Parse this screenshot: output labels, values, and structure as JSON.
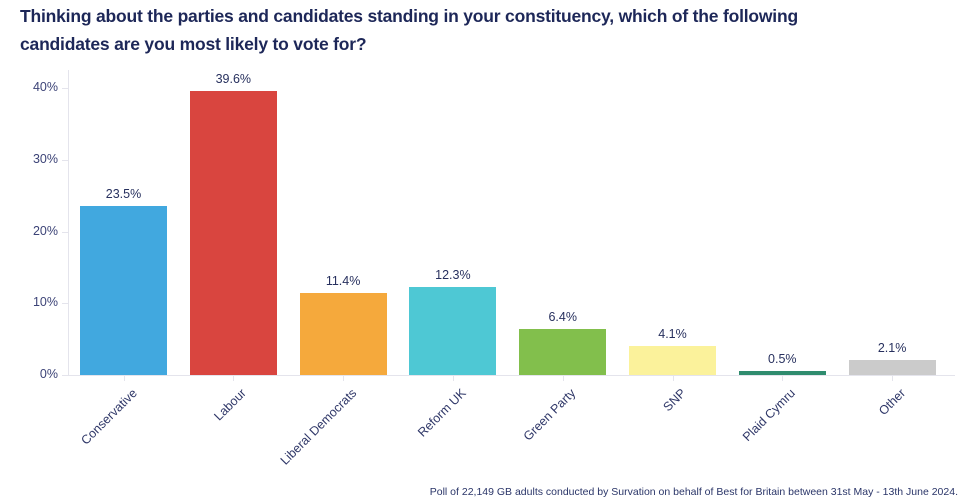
{
  "title_lines": [
    "Thinking about the parties and candidates standing in your constituency, which of the following",
    "candidates are you most likely to vote for?"
  ],
  "footer": "Poll of 22,149 GB adults conducted by Survation on behalf of Best for Britain between 31st May - 13th June 2024.",
  "chart_data": {
    "type": "bar",
    "title": "Thinking about the parties and candidates standing in your constituency, which of the following candidates are you most likely to vote for?",
    "categories": [
      "Conservative",
      "Labour",
      "Liberal Democrats",
      "Reform UK",
      "Green Party",
      "SNP",
      "Plaid Cymru",
      "Other"
    ],
    "values": [
      23.5,
      39.6,
      11.4,
      12.3,
      6.4,
      4.1,
      0.5,
      2.1
    ],
    "value_labels": [
      "23.5%",
      "39.6%",
      "11.4%",
      "12.3%",
      "6.4%",
      "4.1%",
      "0.5%",
      "2.1%"
    ],
    "bar_colors": [
      "#41a8df",
      "#d9453f",
      "#f5a93c",
      "#4ec8d4",
      "#82bf4c",
      "#fbf29b",
      "#2f8c6e",
      "#cbcbcb"
    ],
    "ytick_labels": [
      "0%",
      "10%",
      "20%",
      "30%",
      "40%"
    ],
    "ytick_values": [
      0,
      10,
      20,
      30,
      40
    ],
    "ylim": [
      0,
      42.5
    ],
    "xlabel": "",
    "ylabel": "",
    "grid": false,
    "legend": false,
    "x_tick_angle": -45
  },
  "colors": {
    "title_text": "#1d2758",
    "axis_line": "#e4e4ec",
    "ytick_label": "#3c4377",
    "value_label": "#27305e",
    "xtick_label": "#2f3768",
    "footer_text": "#2a3568",
    "background": "#ffffff"
  }
}
